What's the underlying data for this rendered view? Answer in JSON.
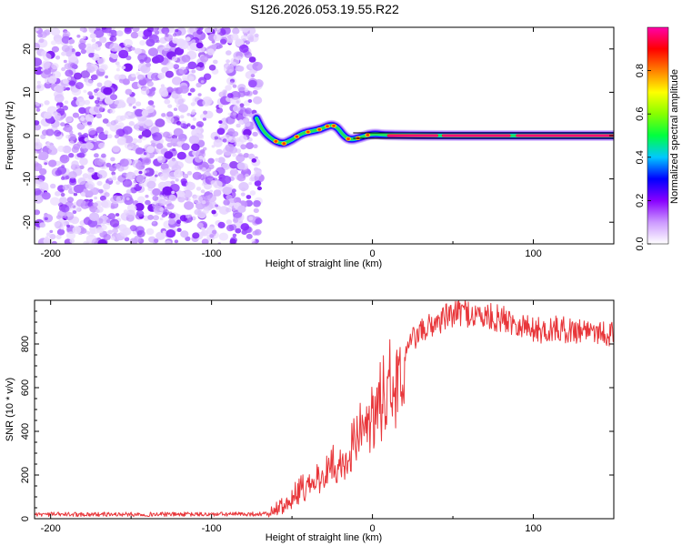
{
  "figure_title": "S126.2026.053.19.55.R22",
  "chart_data": [
    {
      "type": "heatmap",
      "title": "S126.2026.053.19.55.R22",
      "xlabel": "Height of straight line (km)",
      "ylabel": "Frequency (Hz)",
      "xlim": [
        -210,
        150
      ],
      "ylim": [
        -25,
        25
      ],
      "xticks": [
        -200,
        -100,
        0,
        100
      ],
      "yticks": [
        -20,
        -10,
        0,
        10,
        20
      ],
      "noise_region_x": [
        -210,
        -70
      ],
      "reference_line_y": 0,
      "signal_track": [
        {
          "x": -72,
          "y": 4
        },
        {
          "x": -68,
          "y": 1
        },
        {
          "x": -62,
          "y": -1
        },
        {
          "x": -56,
          "y": -2
        },
        {
          "x": -50,
          "y": -1
        },
        {
          "x": -44,
          "y": 0.5
        },
        {
          "x": -38,
          "y": 1
        },
        {
          "x": -32,
          "y": 1.5
        },
        {
          "x": -26,
          "y": 2.5
        },
        {
          "x": -22,
          "y": 2
        },
        {
          "x": -18,
          "y": 0
        },
        {
          "x": -14,
          "y": -1
        },
        {
          "x": -8,
          "y": -0.5
        },
        {
          "x": 0,
          "y": 0.5
        },
        {
          "x": 10,
          "y": 0
        },
        {
          "x": 150,
          "y": 0
        }
      ],
      "colorbar": {
        "label": "Normalized spectral amplitude",
        "range": [
          0,
          1
        ],
        "ticks": [
          "0.0",
          "0.2",
          "0.4",
          "0.6",
          "0.8"
        ],
        "tick_values": [
          0.0,
          0.2,
          0.4,
          0.6,
          0.8
        ],
        "colors": [
          "#ffffff",
          "#cc99ff",
          "#8800ff",
          "#0000ff",
          "#00c8ff",
          "#00ff40",
          "#88ff00",
          "#ffff00",
          "#ff8000",
          "#ff0000",
          "#ff00aa"
        ]
      }
    },
    {
      "type": "line",
      "xlabel": "Height of straight line (km)",
      "ylabel": "SNR (10 * v/v)",
      "xlim": [
        -210,
        150
      ],
      "ylim": [
        0,
        1000
      ],
      "xticks": [
        -200,
        -100,
        0,
        100
      ],
      "yticks": [
        0,
        200,
        400,
        600,
        800
      ],
      "color": "#e8363a",
      "series": [
        {
          "name": "SNR",
          "x": [
            -210,
            -150,
            -100,
            -65,
            -55,
            -45,
            -35,
            -25,
            -15,
            -5,
            5,
            15,
            25,
            35,
            45,
            55,
            65,
            75,
            85,
            95,
            105,
            115,
            125,
            135,
            145,
            150
          ],
          "y": [
            20,
            20,
            20,
            22,
            70,
            140,
            200,
            260,
            320,
            430,
            560,
            680,
            820,
            880,
            920,
            950,
            930,
            920,
            910,
            880,
            860,
            870,
            860,
            870,
            850,
            840
          ]
        }
      ]
    }
  ]
}
